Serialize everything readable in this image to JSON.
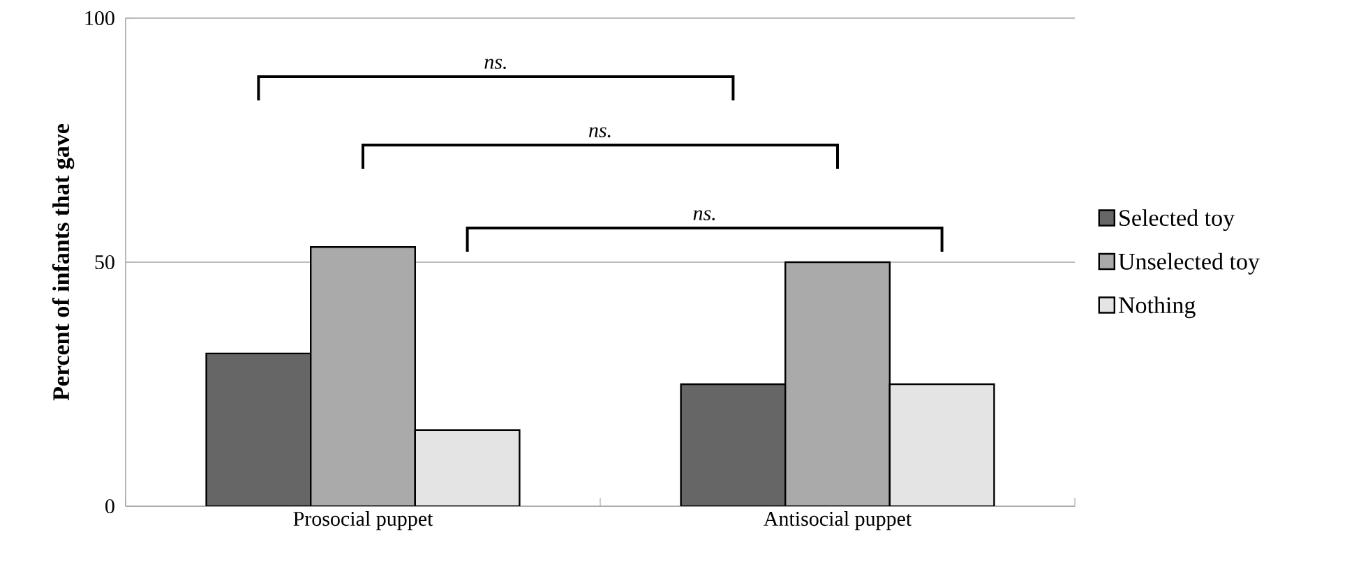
{
  "chart_data": {
    "type": "bar",
    "ylabel": "Percent of infants that gave",
    "categories": [
      "Prosocial puppet",
      "Antisocial puppet"
    ],
    "series": [
      {
        "name": "Selected toy",
        "color": "#666666",
        "values": [
          31.3,
          25
        ]
      },
      {
        "name": "Unselected toy",
        "color": "#aaaaaa",
        "values": [
          53.1,
          50
        ]
      },
      {
        "name": "Nothing",
        "color": "#e4e4e4",
        "values": [
          15.6,
          25
        ]
      }
    ],
    "ylim": [
      0,
      100
    ],
    "yticks": [
      0,
      50,
      100
    ],
    "grid": "y",
    "legend": "right",
    "annotations": [
      "ns.",
      "ns.",
      "ns."
    ]
  }
}
